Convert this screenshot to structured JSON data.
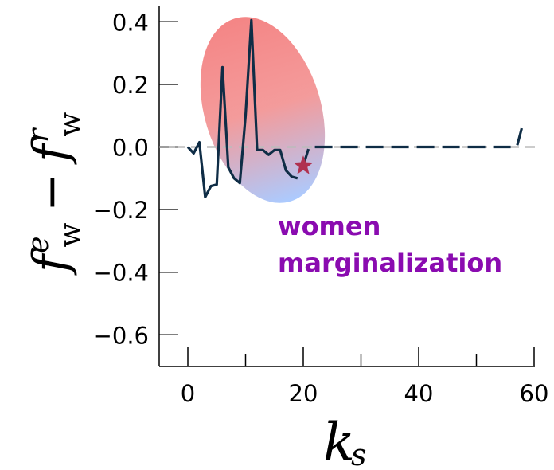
{
  "chart_data": {
    "type": "line",
    "xlabel": "k_s",
    "ylabel": "f_w^e − f_w^r",
    "xlim": [
      -5,
      60
    ],
    "ylim": [
      -0.7,
      0.45
    ],
    "x_ticks": [
      0,
      20,
      40,
      60
    ],
    "x_minor_ticks": [
      10,
      30,
      50
    ],
    "y_ticks": [
      0.4,
      0.2,
      0.0,
      -0.2,
      -0.4,
      -0.6
    ],
    "x_tick_labels": [
      "0",
      "20",
      "40",
      "60"
    ],
    "y_tick_labels": [
      "0.4",
      "0.2",
      "0.0",
      "−0.2",
      "−0.4",
      "−0.6"
    ],
    "reference_line": {
      "y": 0.0,
      "style": "dashed",
      "color": "#bbbbbb"
    },
    "series": [
      {
        "style": "solid",
        "color": "#0f2d46",
        "x": [
          0,
          1,
          2,
          3,
          4,
          5,
          6,
          7,
          8,
          9,
          10,
          11,
          12,
          13,
          14,
          15,
          16,
          17,
          18,
          19
        ],
        "y": [
          0.0,
          -0.02,
          0.015,
          -0.16,
          -0.125,
          -0.12,
          0.255,
          -0.065,
          -0.1,
          -0.115,
          0.1,
          0.405,
          -0.01,
          -0.01,
          -0.025,
          -0.01,
          -0.01,
          -0.075,
          -0.095,
          -0.1
        ]
      },
      {
        "style": "dashed",
        "color": "#0f2d46",
        "x": [
          20,
          21,
          22,
          24,
          30,
          40,
          50,
          55,
          57,
          58
        ],
        "y": [
          -0.06,
          0.0,
          0.0,
          0.0,
          0.0,
          0.0,
          0.0,
          0.0,
          0.0,
          0.07
        ]
      }
    ],
    "highlight_region": {
      "shape": "ellipse",
      "gradient": [
        "#f47f7f",
        "#a7c8ff"
      ]
    },
    "marker": {
      "x": 20,
      "y": -0.06,
      "shape": "star",
      "color": "#b0314f"
    },
    "annotation": [
      "women",
      "marginalization"
    ]
  }
}
